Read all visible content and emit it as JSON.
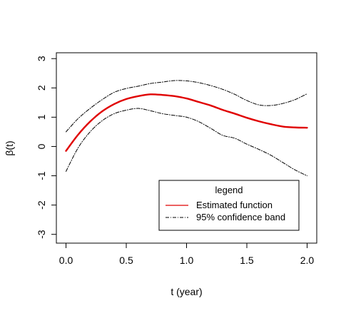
{
  "chart_data": {
    "type": "line",
    "title": "",
    "xlabel": "t (year)",
    "ylabel": "β(t)",
    "xlim": [
      -0.08,
      2.08
    ],
    "ylim": [
      -3.3,
      3.2
    ],
    "xticks": [
      0.0,
      0.5,
      1.0,
      1.5,
      2.0
    ],
    "xtick_labels": [
      "0.0",
      "0.5",
      "1.0",
      "1.5",
      "2.0"
    ],
    "yticks": [
      -3,
      -2,
      -1,
      0,
      1,
      2,
      3
    ],
    "ytick_labels": [
      "-3",
      "-2",
      "-1",
      "0",
      "1",
      "2",
      "3"
    ],
    "grid": false,
    "legend": {
      "title": "legend",
      "placement": "bottom-right",
      "entries": [
        "Estimated function",
        "95% confidence band"
      ]
    },
    "series": [
      {
        "name": "Estimated function",
        "color": "#e00000",
        "style": "solid",
        "x": [
          0.0,
          0.1,
          0.2,
          0.3,
          0.4,
          0.5,
          0.6,
          0.7,
          0.8,
          0.9,
          1.0,
          1.1,
          1.2,
          1.3,
          1.4,
          1.5,
          1.6,
          1.7,
          1.8,
          1.9,
          2.0
        ],
        "y": [
          -0.15,
          0.4,
          0.85,
          1.2,
          1.45,
          1.62,
          1.72,
          1.78,
          1.76,
          1.72,
          1.64,
          1.52,
          1.4,
          1.25,
          1.12,
          0.98,
          0.86,
          0.76,
          0.68,
          0.65,
          0.64
        ]
      },
      {
        "name": "95% confidence band",
        "color": "#000000",
        "style": "dashdot",
        "x": [
          0.0,
          0.1,
          0.2,
          0.3,
          0.4,
          0.5,
          0.6,
          0.7,
          0.8,
          0.9,
          1.0,
          1.1,
          1.2,
          1.3,
          1.4,
          1.5,
          1.6,
          1.7,
          1.8,
          1.9,
          2.0
        ],
        "y": [
          0.5,
          0.95,
          1.3,
          1.6,
          1.85,
          1.98,
          2.06,
          2.15,
          2.2,
          2.25,
          2.24,
          2.18,
          2.08,
          1.95,
          1.78,
          1.57,
          1.42,
          1.4,
          1.47,
          1.6,
          1.8
        ]
      },
      {
        "name": "",
        "color": "#000000",
        "style": "dashdot",
        "x": [
          0.0,
          0.1,
          0.2,
          0.3,
          0.4,
          0.5,
          0.6,
          0.7,
          0.8,
          0.9,
          1.0,
          1.1,
          1.2,
          1.3,
          1.4,
          1.5,
          1.6,
          1.7,
          1.8,
          1.9,
          2.0
        ],
        "y": [
          -0.85,
          -0.05,
          0.5,
          0.88,
          1.12,
          1.24,
          1.3,
          1.22,
          1.12,
          1.06,
          1.0,
          0.85,
          0.62,
          0.38,
          0.28,
          0.08,
          -0.1,
          -0.3,
          -0.55,
          -0.8,
          -1.0
        ]
      }
    ]
  }
}
